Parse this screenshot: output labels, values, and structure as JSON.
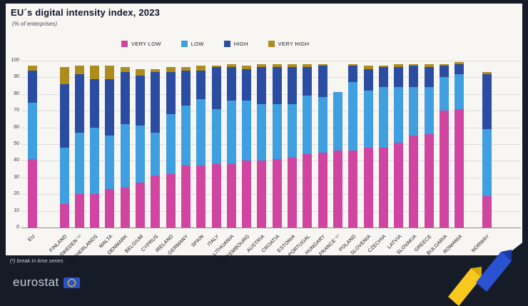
{
  "header": {
    "title": "EU´s digital intensity index, 2023",
    "subtitle": "(% of enterprises)"
  },
  "footer": {
    "footnote": "(¹) break in time series",
    "brand": "eurostat"
  },
  "colors": {
    "very_low": "#d0459f",
    "low": "#3f9fe0",
    "high": "#2b4da1",
    "very_high": "#ad8c1e",
    "background": "#161b28",
    "panel": "#f7f6f3",
    "grid": "#dcdcdc",
    "flag_blue": "#2a52c8",
    "flag_star_yellow": "#ffd617",
    "ribbon_yellow": "#f8c81e",
    "ribbon_blue": "#2a52d1"
  },
  "chart_data": {
    "type": "bar",
    "stacked": true,
    "title": "EU´s digital intensity index, 2023",
    "ylabel": "% of enterprises",
    "ylim": [
      0,
      100
    ],
    "ytick_step": 10,
    "grid": true,
    "legend_position": "top",
    "categories": [
      "EU",
      "FINLAND",
      "SWEDEN ⁽¹⁾",
      "NETHERLANDS",
      "MALTA",
      "DENMARK",
      "BELGIUM",
      "CYPRUS",
      "IRELAND",
      "GERMANY",
      "SPAIN",
      "ITALY",
      "LITHUANIA",
      "LUXEMBOURG",
      "AUSTRIA",
      "CROATIA",
      "ESTONIA",
      "PORTUGAL",
      "HUNGARY",
      "FRANCE ⁽¹⁾",
      "POLAND",
      "SLOVENIA",
      "CZECHIA",
      "LATVIA",
      "SLOVAKIA",
      "GREECE",
      "BULGARIA",
      "ROMANIA",
      "NORWAY"
    ],
    "separators_after_index": [
      0,
      27
    ],
    "series": [
      {
        "name": "VERY LOW",
        "color": "#d0459f",
        "values": [
          41,
          14,
          20,
          20,
          23,
          24,
          27,
          31,
          32,
          37,
          37,
          38,
          38,
          40,
          40,
          41,
          42,
          44,
          45,
          46,
          46,
          48,
          48,
          51,
          55,
          56,
          70,
          71,
          19
        ]
      },
      {
        "name": "LOW",
        "color": "#3f9fe0",
        "values": [
          34,
          34,
          37,
          40,
          32,
          38,
          34,
          26,
          36,
          36,
          40,
          33,
          38,
          36,
          34,
          33,
          32,
          35,
          33,
          35,
          41,
          34,
          36,
          33,
          29,
          28,
          20,
          21,
          40
        ]
      },
      {
        "name": "HIGH",
        "color": "#2b4da1",
        "values": [
          19,
          38,
          35,
          29,
          34,
          31,
          30,
          36,
          25,
          21,
          17,
          25,
          20,
          19,
          22,
          22,
          22,
          17,
          19,
          0,
          10,
          13,
          12,
          12,
          13,
          12,
          7,
          6,
          33
        ]
      },
      {
        "name": "VERY HIGH",
        "color": "#ad8c1e",
        "values": [
          3,
          10,
          5,
          8,
          8,
          3,
          4,
          2,
          3,
          2,
          3,
          1,
          2,
          2,
          2,
          2,
          2,
          2,
          1,
          0,
          1,
          2,
          1,
          2,
          1,
          2,
          1,
          1,
          1
        ]
      }
    ]
  }
}
